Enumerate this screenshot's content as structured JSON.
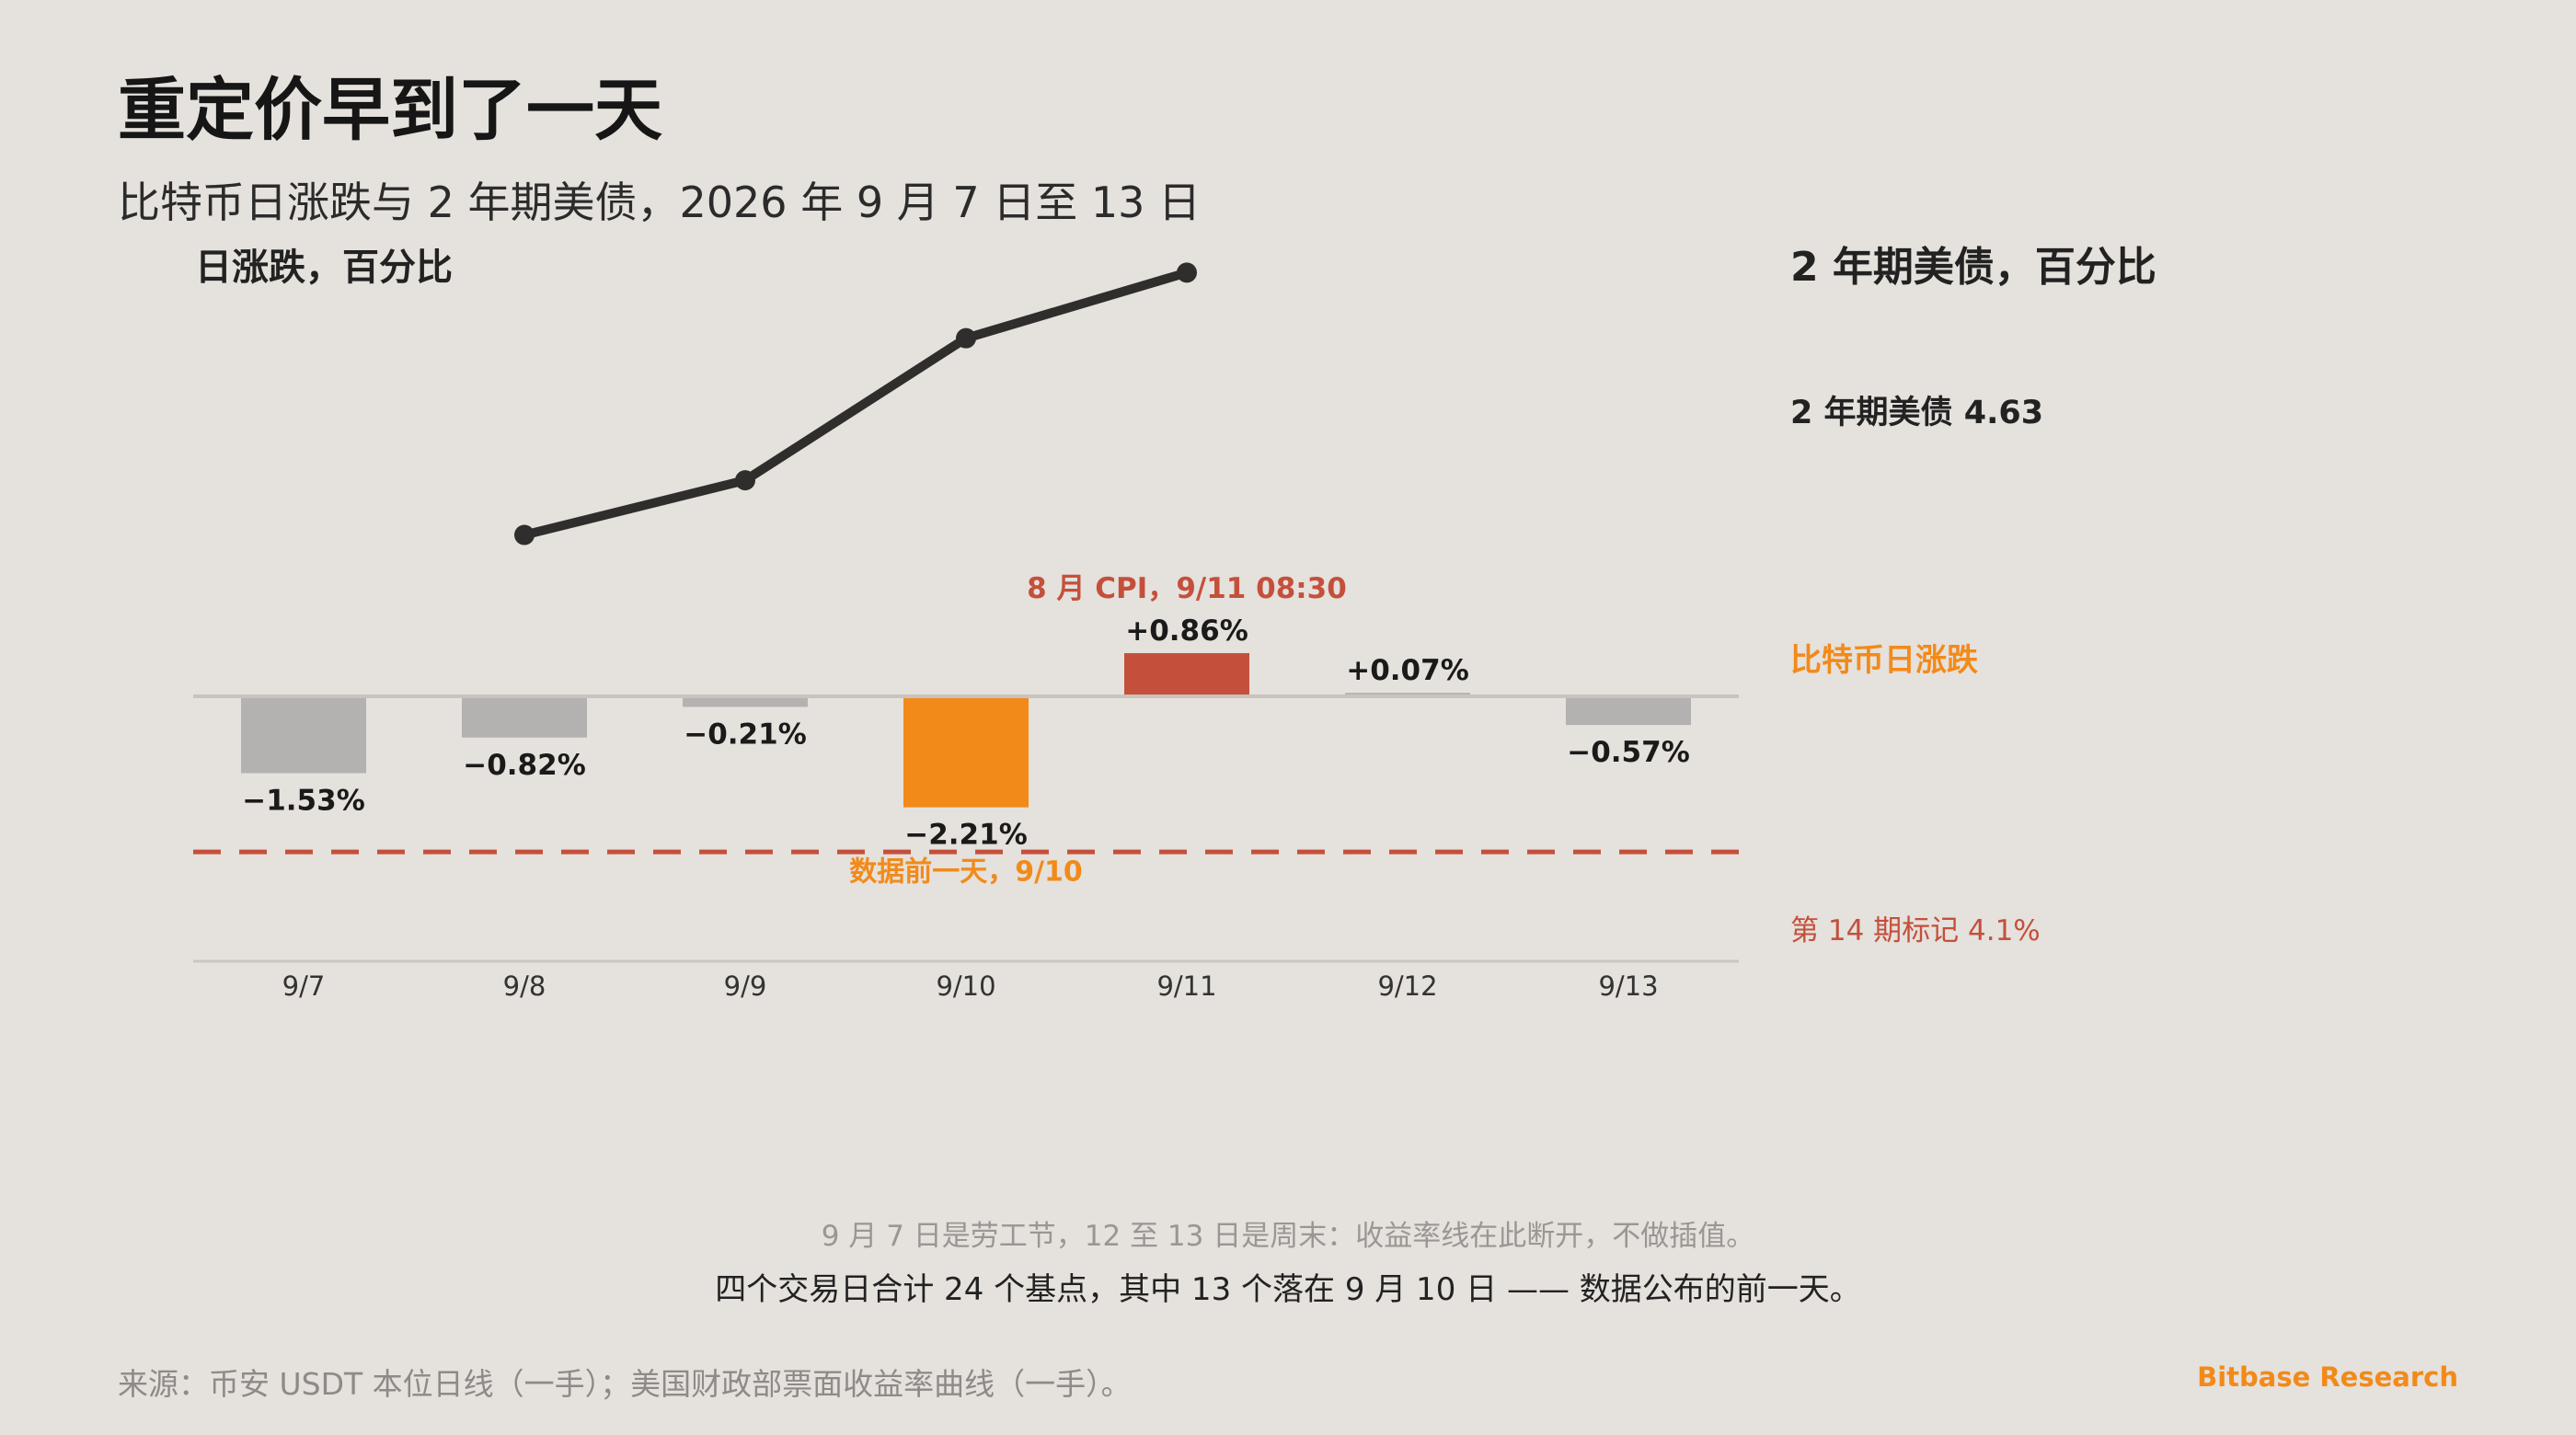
{
  "title": "重定价早到了一天",
  "subtitle": "比特币日涨跌与 2 年期美债，2026 年 9 月 7 日至 13 日",
  "left_axis_title": "日涨跌，百分比",
  "right_axis_title": "2 年期美债，百分比",
  "yield_end_label": "2 年期美债 4.63",
  "btc_label": "比特币日涨跌",
  "marker_label": "第 14 期标记 4.1%",
  "annotations": {
    "cpi": "8 月 CPI，9/11 08:30",
    "pre_data": "数据前一天，9/10"
  },
  "note_1": "9 月 7 日是劳工节，12 至 13 日是周末：收益率线在此断开，不做插值。",
  "note_2": "四个交易日合计 24 个基点，其中 13 个落在 9 月 10 日 —— 数据公布的前一天。",
  "source": "来源：币安 USDT 本位日线（一手）；美国财政部票面收益率曲线（一手）。",
  "brand": "Bitbase Research",
  "colors": {
    "background": "#e5e1dc",
    "bar_default": "#b3b2b1",
    "bar_highlight_pre": "#f28a1a",
    "bar_highlight_cpi": "#c4503c",
    "yield_line": "#2f2e2d",
    "marker_line": "#c4503c",
    "baseline": "#c8c3bd"
  },
  "chart_data": {
    "type": "bar",
    "categories": [
      "9/7",
      "9/8",
      "9/9",
      "9/10",
      "9/11",
      "9/12",
      "9/13"
    ],
    "series": [
      {
        "name": "比特币日涨跌",
        "values": [
          -1.53,
          -0.82,
          -0.21,
          -2.21,
          0.86,
          0.07,
          -0.57
        ],
        "labels": [
          "−1.53%",
          "−0.82%",
          "−0.21%",
          "−2.21%",
          "+0.86%",
          "+0.07%",
          "−0.57%"
        ],
        "highlight": [
          "default",
          "default",
          "default",
          "pre",
          "cpi",
          "default",
          "default"
        ]
      },
      {
        "name": "2 年期美债",
        "type": "line",
        "x": [
          "9/8",
          "9/9",
          "9/10",
          "9/11"
        ],
        "values": [
          4.39,
          4.44,
          4.57,
          4.63
        ]
      }
    ],
    "reference_line": {
      "label": "第 14 期标记 4.1%",
      "value": 4.1
    },
    "left_axis": {
      "label": "日涨跌，百分比",
      "ylim": [
        -5.25,
        5.77
      ]
    },
    "right_axis": {
      "label": "2 年期美债，百分比",
      "ylim": [
        4.0,
        4.77
      ]
    }
  }
}
